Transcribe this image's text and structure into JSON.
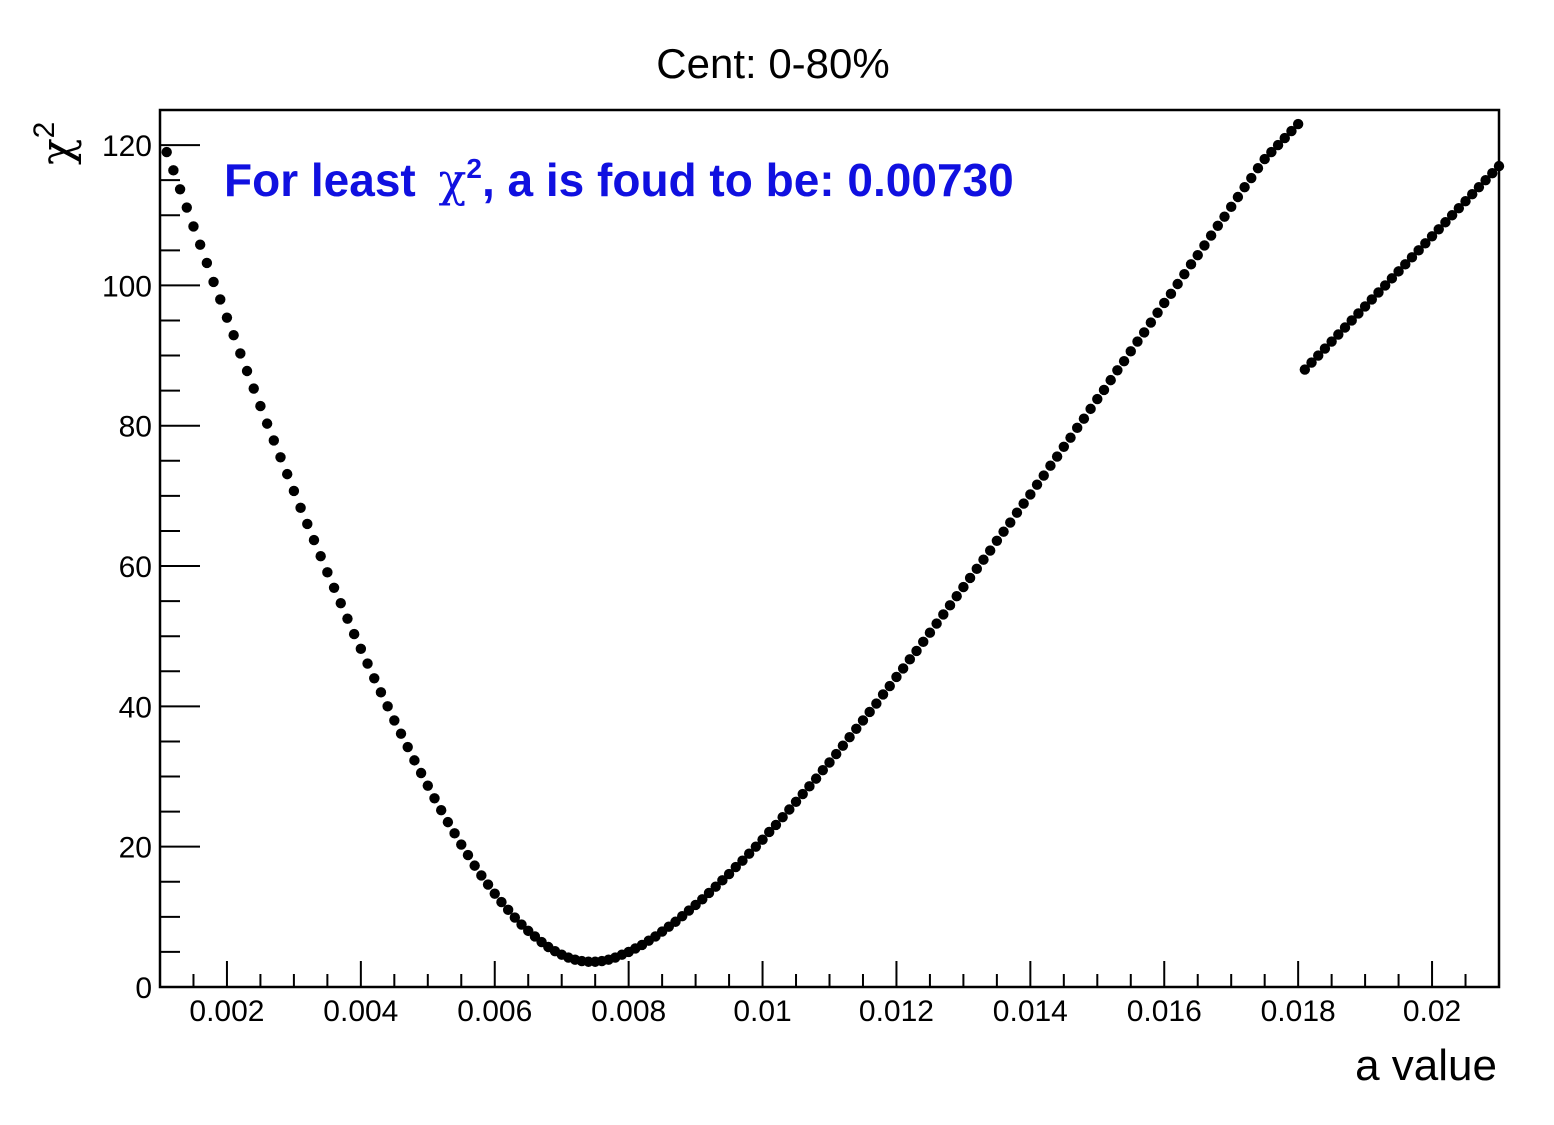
{
  "chart_data": {
    "type": "scatter",
    "title": "Cent: 0-80%",
    "xlabel": "a value",
    "ylabel_base": "χ",
    "ylabel_sup": "2",
    "xlim": [
      0.001,
      0.021
    ],
    "ylim": [
      0,
      125
    ],
    "x_major_ticks": [
      {
        "value": 0.002,
        "label": "0.002"
      },
      {
        "value": 0.004,
        "label": "0.004"
      },
      {
        "value": 0.006,
        "label": "0.006"
      },
      {
        "value": 0.008,
        "label": "0.008"
      },
      {
        "value": 0.01,
        "label": "0.01"
      },
      {
        "value": 0.012,
        "label": "0.012"
      },
      {
        "value": 0.014,
        "label": "0.014"
      },
      {
        "value": 0.016,
        "label": "0.016"
      },
      {
        "value": 0.018,
        "label": "0.018"
      },
      {
        "value": 0.02,
        "label": "0.02"
      }
    ],
    "y_major_ticks": [
      {
        "value": 0,
        "label": "0"
      },
      {
        "value": 20,
        "label": "20"
      },
      {
        "value": 40,
        "label": "40"
      },
      {
        "value": 60,
        "label": "60"
      },
      {
        "value": 80,
        "label": "80"
      },
      {
        "value": 100,
        "label": "100"
      },
      {
        "value": 120,
        "label": "120"
      }
    ],
    "annotation": {
      "prefix": "For least ",
      "symbol": "χ",
      "sup": "2",
      "suffix": ", a is foud to be: 0.00730",
      "color": "#1010e0"
    },
    "marker_color": "#000000",
    "series": [
      {
        "points": [
          [
            0.0011,
            119.0
          ],
          [
            0.0012,
            116.4
          ],
          [
            0.0013,
            113.7
          ],
          [
            0.0014,
            111.1
          ],
          [
            0.0015,
            108.4
          ],
          [
            0.0016,
            105.8
          ],
          [
            0.0017,
            103.2
          ],
          [
            0.0018,
            100.5
          ],
          [
            0.0019,
            98.0
          ],
          [
            0.002,
            95.4
          ],
          [
            0.0021,
            92.9
          ],
          [
            0.0022,
            90.3
          ],
          [
            0.0023,
            87.8
          ],
          [
            0.0024,
            85.3
          ],
          [
            0.0025,
            82.8
          ],
          [
            0.0026,
            80.3
          ],
          [
            0.0027,
            77.9
          ],
          [
            0.0028,
            75.5
          ],
          [
            0.0029,
            73.1
          ],
          [
            0.003,
            70.7
          ],
          [
            0.0031,
            68.3
          ],
          [
            0.0032,
            66.0
          ],
          [
            0.0033,
            63.7
          ],
          [
            0.0034,
            61.4
          ],
          [
            0.0035,
            59.1
          ],
          [
            0.0036,
            56.9
          ],
          [
            0.0037,
            54.7
          ],
          [
            0.0038,
            52.5
          ],
          [
            0.0039,
            50.3
          ],
          [
            0.004,
            48.2
          ],
          [
            0.0041,
            46.1
          ],
          [
            0.0042,
            44.0
          ],
          [
            0.0043,
            42.0
          ],
          [
            0.0044,
            40.0
          ],
          [
            0.0045,
            38.0
          ],
          [
            0.0046,
            36.1
          ],
          [
            0.0047,
            34.2
          ],
          [
            0.0048,
            32.3
          ],
          [
            0.0049,
            30.5
          ],
          [
            0.005,
            28.7
          ],
          [
            0.0051,
            26.9
          ],
          [
            0.0052,
            25.2
          ],
          [
            0.0053,
            23.5
          ],
          [
            0.0054,
            21.9
          ],
          [
            0.0055,
            20.3
          ],
          [
            0.0056,
            18.8
          ],
          [
            0.0057,
            17.3
          ],
          [
            0.0058,
            15.9
          ],
          [
            0.0059,
            14.6
          ],
          [
            0.006,
            13.3
          ],
          [
            0.0061,
            12.1
          ],
          [
            0.0062,
            11.0
          ],
          [
            0.0063,
            9.9
          ],
          [
            0.0064,
            8.9
          ],
          [
            0.0065,
            8.0
          ],
          [
            0.0066,
            7.2
          ],
          [
            0.0067,
            6.4
          ],
          [
            0.0068,
            5.7
          ],
          [
            0.0069,
            5.1
          ],
          [
            0.007,
            4.6
          ],
          [
            0.0071,
            4.2
          ],
          [
            0.0072,
            3.9
          ],
          [
            0.0073,
            3.7
          ],
          [
            0.0074,
            3.6
          ],
          [
            0.0075,
            3.6
          ],
          [
            0.0076,
            3.7
          ],
          [
            0.0077,
            3.9
          ],
          [
            0.0078,
            4.2
          ],
          [
            0.0079,
            4.6
          ],
          [
            0.008,
            5.0
          ],
          [
            0.0081,
            5.5
          ],
          [
            0.0082,
            6.0
          ],
          [
            0.0083,
            6.6
          ],
          [
            0.0084,
            7.2
          ],
          [
            0.0085,
            7.9
          ],
          [
            0.0086,
            8.6
          ],
          [
            0.0087,
            9.3
          ],
          [
            0.0088,
            10.1
          ],
          [
            0.0089,
            10.9
          ],
          [
            0.009,
            11.7
          ],
          [
            0.0091,
            12.5
          ],
          [
            0.0092,
            13.4
          ],
          [
            0.0093,
            14.3
          ],
          [
            0.0094,
            15.2
          ],
          [
            0.0095,
            16.1
          ],
          [
            0.0096,
            17.1
          ],
          [
            0.0097,
            18.0
          ],
          [
            0.0098,
            19.0
          ],
          [
            0.0099,
            20.0
          ],
          [
            0.01,
            21.0
          ],
          [
            0.0101,
            22.1
          ],
          [
            0.0102,
            23.1
          ],
          [
            0.0103,
            24.2
          ],
          [
            0.0104,
            25.3
          ],
          [
            0.0105,
            26.4
          ],
          [
            0.0106,
            27.5
          ],
          [
            0.0107,
            28.6
          ],
          [
            0.0108,
            29.7
          ],
          [
            0.0109,
            30.9
          ],
          [
            0.011,
            32.0
          ],
          [
            0.0111,
            33.2
          ],
          [
            0.0112,
            34.4
          ],
          [
            0.0113,
            35.6
          ],
          [
            0.0114,
            36.8
          ],
          [
            0.0115,
            38.0
          ],
          [
            0.0116,
            39.2
          ],
          [
            0.0117,
            40.4
          ],
          [
            0.0118,
            41.7
          ],
          [
            0.0119,
            42.9
          ],
          [
            0.012,
            44.2
          ],
          [
            0.0121,
            45.4
          ],
          [
            0.0122,
            46.7
          ],
          [
            0.0123,
            47.9
          ],
          [
            0.0124,
            49.2
          ],
          [
            0.0125,
            50.5
          ],
          [
            0.0126,
            51.8
          ],
          [
            0.0127,
            53.1
          ],
          [
            0.0128,
            54.4
          ],
          [
            0.0129,
            55.7
          ],
          [
            0.013,
            57.0
          ],
          [
            0.0131,
            58.3
          ],
          [
            0.0132,
            59.6
          ],
          [
            0.0133,
            60.9
          ],
          [
            0.0134,
            62.2
          ],
          [
            0.0135,
            63.6
          ],
          [
            0.0136,
            64.9
          ],
          [
            0.0137,
            66.2
          ],
          [
            0.0138,
            67.6
          ],
          [
            0.0139,
            68.9
          ],
          [
            0.014,
            70.2
          ],
          [
            0.0141,
            71.6
          ],
          [
            0.0142,
            72.9
          ],
          [
            0.0143,
            74.3
          ],
          [
            0.0144,
            75.6
          ],
          [
            0.0145,
            77.0
          ],
          [
            0.0146,
            78.3
          ],
          [
            0.0147,
            79.7
          ],
          [
            0.0148,
            81.0
          ],
          [
            0.0149,
            82.4
          ],
          [
            0.015,
            83.8
          ],
          [
            0.0151,
            85.1
          ],
          [
            0.0152,
            86.5
          ],
          [
            0.0153,
            87.9
          ],
          [
            0.0154,
            89.2
          ],
          [
            0.0155,
            90.6
          ],
          [
            0.0156,
            92.0
          ],
          [
            0.0157,
            93.3
          ],
          [
            0.0158,
            94.7
          ],
          [
            0.0159,
            96.1
          ],
          [
            0.016,
            97.5
          ],
          [
            0.0161,
            98.8
          ],
          [
            0.0162,
            100.2
          ],
          [
            0.0163,
            101.6
          ],
          [
            0.0164,
            103.0
          ],
          [
            0.0165,
            104.3
          ],
          [
            0.0166,
            105.7
          ],
          [
            0.0167,
            107.1
          ],
          [
            0.0168,
            108.5
          ],
          [
            0.0169,
            109.8
          ],
          [
            0.017,
            111.2
          ],
          [
            0.0171,
            112.6
          ],
          [
            0.0172,
            114.0
          ],
          [
            0.0173,
            115.3
          ],
          [
            0.0174,
            116.7
          ],
          [
            0.0175,
            118.0
          ],
          [
            0.0176,
            119.0
          ],
          [
            0.0177,
            120.0
          ],
          [
            0.0178,
            121.0
          ],
          [
            0.0179,
            122.0
          ],
          [
            0.018,
            123.0
          ],
          [
            0.0181,
            88.0
          ],
          [
            0.0182,
            89.0
          ],
          [
            0.0183,
            90.0
          ],
          [
            0.0184,
            91.0
          ],
          [
            0.0185,
            92.0
          ],
          [
            0.0186,
            93.0
          ],
          [
            0.0187,
            94.0
          ],
          [
            0.0188,
            95.0
          ],
          [
            0.0189,
            96.0
          ],
          [
            0.019,
            97.0
          ],
          [
            0.0191,
            98.0
          ],
          [
            0.0192,
            99.0
          ],
          [
            0.0193,
            100.0
          ],
          [
            0.0194,
            101.0
          ],
          [
            0.0195,
            102.0
          ],
          [
            0.0196,
            103.0
          ],
          [
            0.0197,
            104.0
          ],
          [
            0.0198,
            105.0
          ],
          [
            0.0199,
            106.0
          ],
          [
            0.02,
            107.0
          ],
          [
            0.0201,
            108.0
          ],
          [
            0.0202,
            109.0
          ],
          [
            0.0203,
            110.0
          ],
          [
            0.0204,
            111.0
          ],
          [
            0.0205,
            112.0
          ],
          [
            0.0206,
            113.0
          ],
          [
            0.0207,
            114.0
          ],
          [
            0.0208,
            115.0
          ],
          [
            0.0209,
            116.0
          ],
          [
            0.021,
            117.0
          ]
        ]
      }
    ]
  }
}
